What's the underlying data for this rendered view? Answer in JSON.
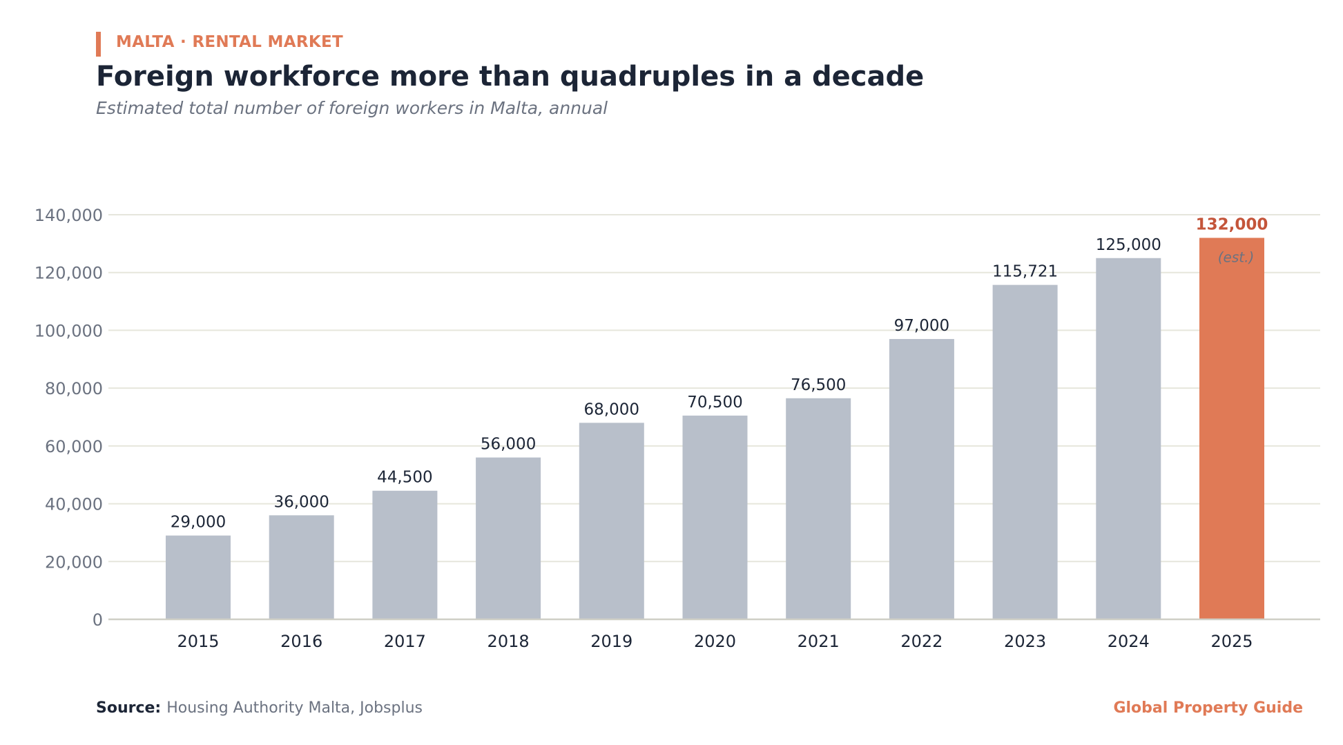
{
  "header": {
    "kicker": "MALTA · RENTAL MARKET",
    "title": "Foreign workforce more than quadruples in a decade",
    "subtitle": "Estimated total number of foreign workers in Malta, annual"
  },
  "footer": {
    "source_label": "Source:",
    "source_text": "Housing Authority Malta, Jobsplus",
    "brand": "Global Property Guide"
  },
  "colors": {
    "accent": "#E07A56",
    "accent_dark": "#C4553A",
    "bar": "#B8BFCA",
    "grid": "#E6E6DC",
    "axis": "#CFCFC6",
    "tick_text": "#6B7280",
    "label_text": "#1C2536"
  },
  "chart_data": {
    "type": "bar",
    "categories": [
      "2015",
      "2016",
      "2017",
      "2018",
      "2019",
      "2020",
      "2021",
      "2022",
      "2023",
      "2024",
      "2025"
    ],
    "values": [
      29000,
      36000,
      44500,
      56000,
      68000,
      70500,
      76500,
      97000,
      115721,
      125000,
      132000
    ],
    "value_labels": [
      "29,000",
      "36,000",
      "44,500",
      "56,000",
      "68,000",
      "70,500",
      "76,500",
      "97,000",
      "115,721",
      "125,000",
      "132,000"
    ],
    "highlight_index": 10,
    "highlight_note": "(est.)",
    "ylim": [
      0,
      140000
    ],
    "yticks": [
      0,
      20000,
      40000,
      60000,
      80000,
      100000,
      120000,
      140000
    ],
    "ytick_labels": [
      "0",
      "20,000",
      "40,000",
      "60,000",
      "80,000",
      "100,000",
      "120,000",
      "140,000"
    ],
    "grid": true,
    "legend": "none",
    "xlabel": "",
    "ylabel": ""
  }
}
